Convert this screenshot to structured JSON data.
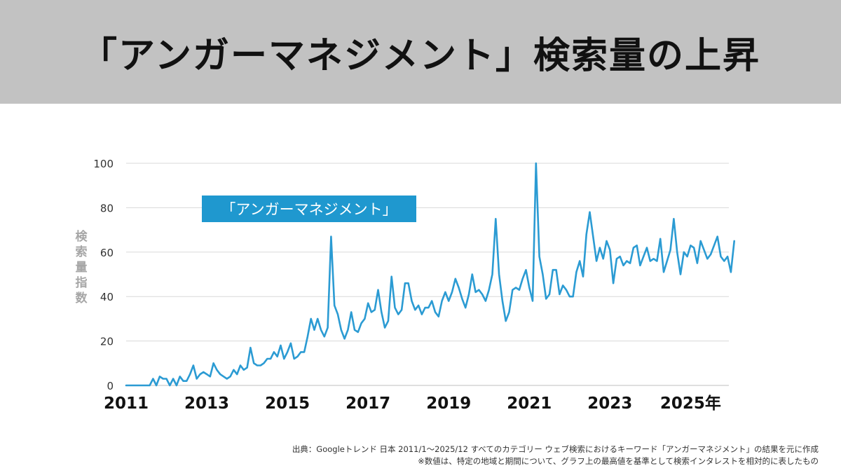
{
  "title": "「アンガーマネジメント」検索量の上昇",
  "colors": {
    "line": "#2b9bd3",
    "label_bg": "#1f98cf",
    "header_bg": "#c2c2c2",
    "grid": "#d9d9d9"
  },
  "chart_data": {
    "type": "line",
    "title": "",
    "ylabel": "検索量指数",
    "xlabel": "",
    "ylim": [
      0,
      100
    ],
    "yticks": [
      0,
      20,
      40,
      60,
      80,
      100
    ],
    "xlim": [
      2011.0,
      2025.95
    ],
    "xticks": [
      {
        "value": 2011,
        "label": "2011"
      },
      {
        "value": 2013,
        "label": "2013"
      },
      {
        "value": 2015,
        "label": "2015"
      },
      {
        "value": 2017,
        "label": "2017"
      },
      {
        "value": 2019,
        "label": "2019"
      },
      {
        "value": 2021,
        "label": "2021"
      },
      {
        "value": 2023,
        "label": "2023"
      },
      {
        "value": 2025,
        "label": "2025年"
      }
    ],
    "series": [
      {
        "name": "「アンガーマネジメント」",
        "start": "2011-01",
        "frequency": "monthly",
        "values": [
          0,
          0,
          0,
          0,
          0,
          0,
          0,
          0,
          3,
          0,
          4,
          3,
          3,
          0,
          3,
          0,
          4,
          2,
          2,
          5,
          9,
          3,
          5,
          6,
          5,
          4,
          10,
          7,
          5,
          4,
          3,
          4,
          7,
          5,
          9,
          7,
          8,
          17,
          10,
          9,
          9,
          10,
          12,
          12,
          15,
          13,
          18,
          12,
          15,
          19,
          12,
          13,
          15,
          15,
          22,
          30,
          25,
          30,
          25,
          22,
          26,
          67,
          36,
          32,
          25,
          21,
          25,
          33,
          25,
          24,
          28,
          30,
          37,
          33,
          34,
          43,
          33,
          26,
          29,
          49,
          35,
          32,
          34,
          46,
          46,
          38,
          34,
          36,
          32,
          35,
          35,
          38,
          33,
          31,
          38,
          42,
          38,
          42,
          48,
          44,
          39,
          35,
          41,
          50,
          42,
          43,
          41,
          38,
          43,
          50,
          75,
          50,
          38,
          29,
          33,
          43,
          44,
          43,
          48,
          52,
          44,
          38,
          100,
          58,
          50,
          39,
          41,
          52,
          52,
          41,
          45,
          43,
          40,
          40,
          51,
          56,
          49,
          68,
          78,
          67,
          56,
          62,
          57,
          65,
          61,
          46,
          57,
          58,
          54,
          56,
          55,
          62,
          63,
          54,
          58,
          62,
          56,
          57,
          56,
          66,
          51,
          56,
          61,
          75,
          60,
          50,
          60,
          58,
          63,
          62,
          55,
          65,
          61,
          57,
          59,
          63,
          67,
          58,
          56,
          58,
          51,
          65
        ]
      }
    ]
  },
  "source_notes": [
    "出典：Googleトレンド 日本 2011/1〜2025/12 すべてのカテゴリー ウェブ検索におけるキーワード「アンガーマネジメント」の結果を元に作成",
    "※数値は、特定の地域と期間について、グラフ上の最高値を基準として検索インタレストを相対的に表したもの"
  ]
}
